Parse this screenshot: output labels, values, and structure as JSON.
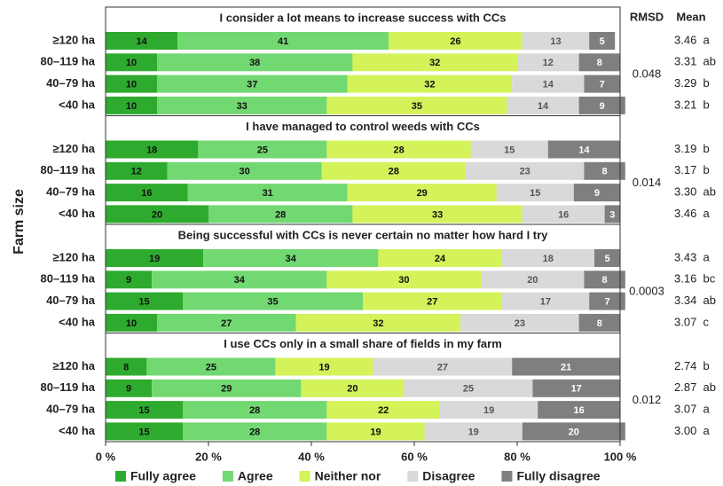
{
  "chart_data": {
    "type": "bar",
    "orientation": "horizontal",
    "stacked": true,
    "y_label": "Farm size",
    "rmsd_label": "RMSD",
    "mean_label": "Mean",
    "xlim": [
      0,
      100
    ],
    "xticks": [
      {
        "value": 0,
        "label": "0 %"
      },
      {
        "value": 20,
        "label": "20 %"
      },
      {
        "value": 40,
        "label": "40 %"
      },
      {
        "value": 60,
        "label": "60 %"
      },
      {
        "value": 80,
        "label": "80 %"
      },
      {
        "value": 100,
        "label": "100 %"
      }
    ],
    "legend": "bottom",
    "series": [
      {
        "name": "Fully agree",
        "color": "#2eaa2e",
        "label_color": "#111111"
      },
      {
        "name": "Agree",
        "color": "#72d872",
        "label_color": "#111111"
      },
      {
        "name": "Neither nor",
        "color": "#d4f25a",
        "label_color": "#111111"
      },
      {
        "name": "Disagree",
        "color": "#d9d9d9",
        "label_color": "#555555"
      },
      {
        "name": "Fully disagree",
        "color": "#7f7f7f",
        "label_color": "#ffffff"
      }
    ],
    "panels": [
      {
        "title": "I consider a lot means to increase success with CCs",
        "categories": [
          "≥120 ha",
          "80–119 ha",
          "40–79 ha",
          "<40 ha"
        ],
        "values": [
          [
            14,
            41,
            26,
            13,
            5
          ],
          [
            10,
            38,
            32,
            12,
            8
          ],
          [
            10,
            37,
            32,
            14,
            7
          ],
          [
            10,
            33,
            35,
            14,
            9
          ]
        ],
        "rmsd": 0.048,
        "mean_labels": [
          "3.46  a",
          "3.31  ab",
          "3.29  b",
          "3.21  b"
        ]
      },
      {
        "title": "I have managed to control weeds with CCs",
        "categories": [
          "≥120 ha",
          "80–119 ha",
          "40–79 ha",
          "<40 ha"
        ],
        "values": [
          [
            18,
            25,
            28,
            15,
            14
          ],
          [
            12,
            30,
            28,
            23,
            8
          ],
          [
            16,
            31,
            29,
            15,
            9
          ],
          [
            20,
            28,
            33,
            16,
            3
          ]
        ],
        "rmsd": 0.014,
        "mean_labels": [
          "3.19  b",
          "3.17  b",
          "3.30  ab",
          "3.46  a"
        ]
      },
      {
        "title": "Being successful with CCs is never certain no matter how hard I try",
        "categories": [
          "≥120 ha",
          "80–119 ha",
          "40–79 ha",
          "<40 ha"
        ],
        "values": [
          [
            19,
            34,
            24,
            18,
            5
          ],
          [
            9,
            34,
            30,
            20,
            8
          ],
          [
            15,
            35,
            27,
            17,
            7
          ],
          [
            10,
            27,
            32,
            23,
            8
          ]
        ],
        "rmsd": 0.0003,
        "mean_labels": [
          "3.43  a",
          "3.16  bc",
          "3.34  ab",
          "3.07  c"
        ]
      },
      {
        "title": "I use CCs only in a small share of fields in my farm",
        "categories": [
          "≥120 ha",
          "80–119 ha",
          "40–79 ha",
          "<40 ha"
        ],
        "values": [
          [
            8,
            25,
            19,
            27,
            21
          ],
          [
            9,
            29,
            20,
            25,
            17
          ],
          [
            15,
            28,
            22,
            19,
            16
          ],
          [
            15,
            28,
            19,
            19,
            20
          ]
        ],
        "rmsd": 0.012,
        "mean_labels": [
          "2.74  b",
          "2.87  ab",
          "3.07  a",
          "3.00  a"
        ]
      }
    ]
  }
}
